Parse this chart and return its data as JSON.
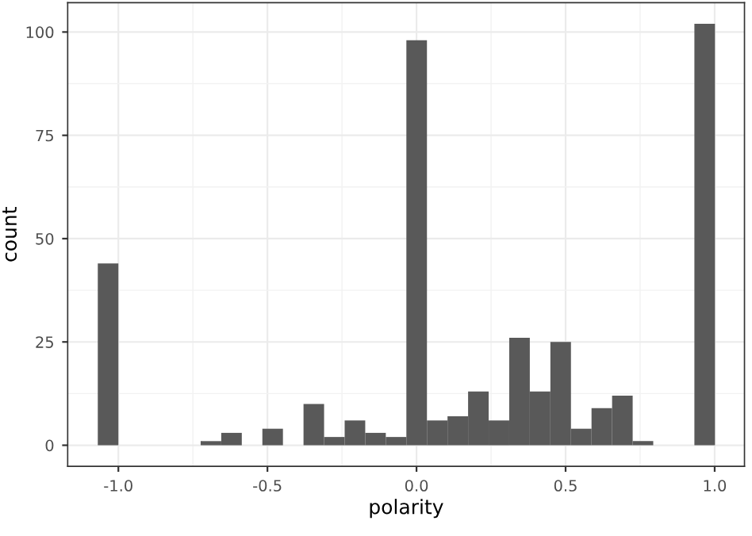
{
  "chart_data": {
    "type": "histogram",
    "xlabel": "polarity",
    "ylabel": "count",
    "bins": [
      -1.069,
      -1.0,
      -0.931,
      -0.862,
      -0.793,
      -0.724,
      -0.655,
      -0.586,
      -0.517,
      -0.448,
      -0.379,
      -0.31,
      -0.241,
      -0.172,
      -0.103,
      -0.034,
      0.035,
      0.104,
      0.173,
      0.242,
      0.311,
      0.38,
      0.449,
      0.518,
      0.587,
      0.656,
      0.725,
      0.794,
      0.863,
      0.932,
      1.001
    ],
    "values": [
      44,
      0,
      0,
      0,
      0,
      1,
      3,
      0,
      4,
      0,
      10,
      2,
      6,
      3,
      2,
      98,
      6,
      7,
      13,
      6,
      26,
      13,
      25,
      4,
      9,
      12,
      1,
      0,
      0,
      102
    ],
    "color": "#595959",
    "xlim": [
      -1.17,
      1.1
    ],
    "ylim": [
      -5.1,
      107.1
    ],
    "xticks": [
      {
        "value": -1,
        "label": "-1.0"
      },
      {
        "value": -0.5,
        "label": "-0.5"
      },
      {
        "value": 0,
        "label": "0.0"
      },
      {
        "value": 0.5,
        "label": "0.5"
      },
      {
        "value": 1,
        "label": "1.0"
      }
    ],
    "yticks": [
      0,
      25,
      50,
      75,
      100
    ],
    "grid": true
  }
}
